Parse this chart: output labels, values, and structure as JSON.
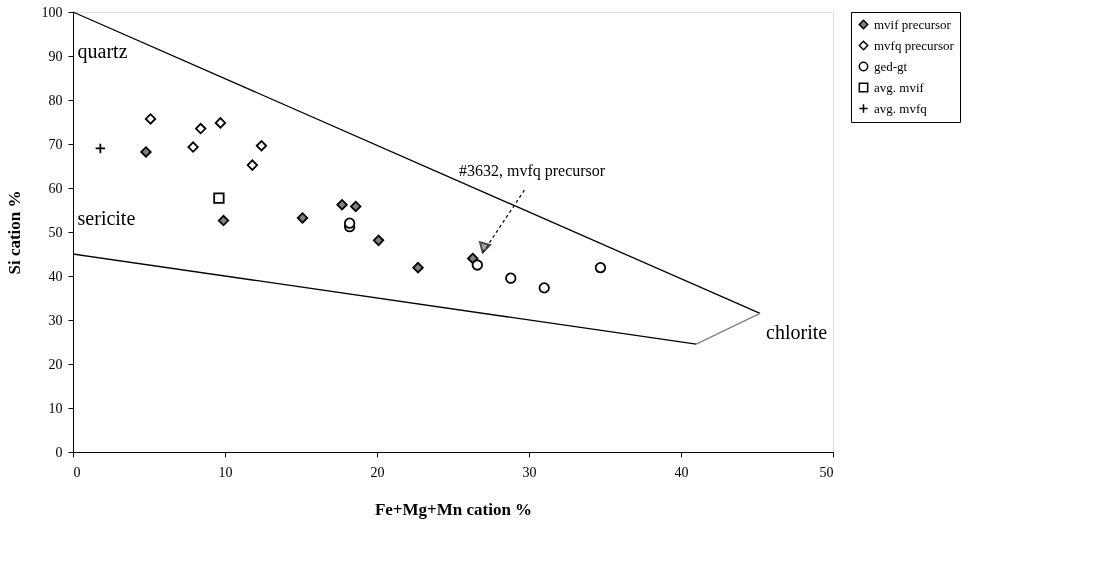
{
  "chart_data": {
    "type": "scatter",
    "xlabel": "Fe+Mg+Mn cation %",
    "ylabel": "Si cation %",
    "xlim": [
      0,
      50
    ],
    "xticks": [
      0,
      10,
      20,
      30,
      40,
      50
    ],
    "ylim": [
      0,
      100
    ],
    "yticks": [
      0,
      10,
      20,
      30,
      40,
      50,
      60,
      70,
      80,
      90,
      100
    ],
    "grid": false,
    "legend": "right",
    "series": [
      {
        "name": "mvif precursor",
        "type": "scatter",
        "marker": "diamond",
        "color": "#808080",
        "x": [
          4.8,
          9.9,
          15.1,
          17.7,
          18.6,
          20.1,
          22.7,
          26.3
        ],
        "values": [
          68.2,
          52.6,
          53.2,
          56.2,
          55.8,
          48.1,
          41.9,
          44.0
        ]
      },
      {
        "name": "mvfq precursor",
        "type": "scatter",
        "marker": "diamond",
        "color": "#000000",
        "x": [
          5.1,
          7.9,
          8.4,
          9.7,
          11.8,
          12.4
        ],
        "values": [
          75.7,
          69.3,
          73.5,
          74.8,
          65.2,
          69.6
        ]
      },
      {
        "name": "ged-gt",
        "type": "scatter",
        "marker": "circle",
        "color": "#000000",
        "x": [
          18.2,
          18.2,
          26.6,
          28.8,
          31.0,
          34.7
        ],
        "values": [
          51.2,
          52.0,
          42.5,
          39.5,
          37.3,
          41.9
        ]
      },
      {
        "name": "avg. mvif",
        "type": "scatter",
        "marker": "square",
        "color": "#000000",
        "x": [
          9.6
        ],
        "values": [
          57.7
        ]
      },
      {
        "name": "avg. mvfq",
        "type": "scatter",
        "marker": "cross",
        "color": "#000000",
        "x": [
          1.8
        ],
        "values": [
          69.0
        ]
      },
      {
        "type": "line",
        "color": "#000000",
        "x": [
          0,
          45.2
        ],
        "values": [
          100,
          31.5
        ]
      },
      {
        "type": "line",
        "color": "#000000",
        "x": [
          0,
          41.0
        ],
        "values": [
          45,
          24.5
        ]
      },
      {
        "type": "line",
        "color": "#808080",
        "x": [
          41.0,
          45.2
        ],
        "values": [
          24.5,
          31.5
        ]
      }
    ],
    "annotations": [
      "quartz",
      "sericite",
      "chlorite",
      "#3632, mvfq precursor"
    ]
  }
}
